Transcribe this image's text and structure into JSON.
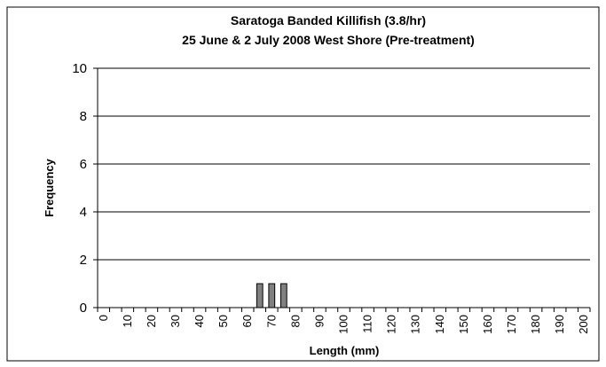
{
  "chart_data": {
    "type": "bar",
    "title": [
      "Saratoga Banded Killifish (3.8/hr)",
      "25 June & 2 July 2008 West Shore (Pre-treatment)"
    ],
    "x_label": "Length (mm)",
    "y_label": "Frequency",
    "categories": [
      "0",
      null,
      "10",
      null,
      "20",
      null,
      "30",
      null,
      "40",
      null,
      "50",
      null,
      "60",
      null,
      "70",
      null,
      "80",
      null,
      "90",
      null,
      "100",
      null,
      "110",
      null,
      "120",
      null,
      "130",
      null,
      "140",
      null,
      "150",
      null,
      "160",
      null,
      "170",
      null,
      "180",
      null,
      "190",
      null,
      "200"
    ],
    "values": [
      0,
      0,
      0,
      0,
      0,
      0,
      0,
      0,
      0,
      0,
      0,
      0,
      0,
      1,
      1,
      1,
      0,
      0,
      0,
      0,
      0,
      0,
      0,
      0,
      0,
      0,
      0,
      0,
      0,
      0,
      0,
      0,
      0,
      0,
      0,
      0,
      0,
      0,
      0,
      0,
      0
    ],
    "color": "#808080",
    "ylim": [
      0,
      10
    ],
    "yticks": [
      0,
      2,
      4,
      6,
      8,
      10
    ],
    "grid": true
  }
}
